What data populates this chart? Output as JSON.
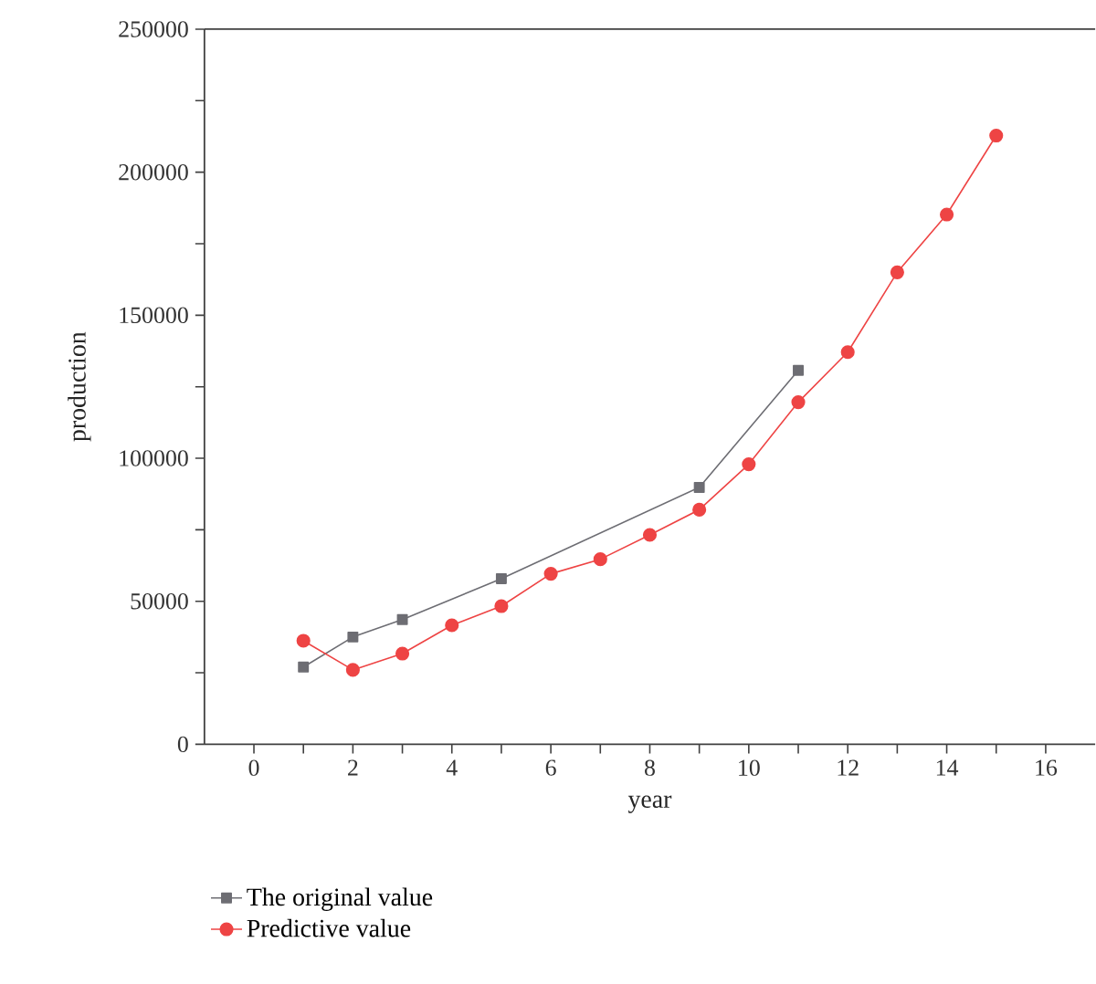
{
  "chart_data": {
    "type": "line",
    "xlabel": "year",
    "ylabel": "production",
    "xlim": [
      -1,
      17
    ],
    "xticks": [
      0,
      {
        "value": 1,
        "label": null
      },
      2,
      {
        "value": 3,
        "label": null
      },
      4,
      {
        "value": 5,
        "label": null
      },
      6,
      {
        "value": 7,
        "label": null
      },
      8,
      {
        "value": 9,
        "label": null
      },
      10,
      {
        "value": 11,
        "label": null
      },
      12,
      {
        "value": 13,
        "label": null
      },
      14,
      {
        "value": 15,
        "label": null
      },
      16
    ],
    "ylim": [
      0,
      250000
    ],
    "yticks": [
      0,
      {
        "value": 25000,
        "label": null
      },
      50000,
      {
        "value": 75000,
        "label": null
      },
      100000,
      {
        "value": 125000,
        "label": null
      },
      150000,
      {
        "value": 175000,
        "label": null
      },
      200000,
      {
        "value": 225000,
        "label": null
      },
      250000
    ],
    "grid": false,
    "legend": "bottom left",
    "line_style": "solid",
    "series": [
      {
        "name": "The original value",
        "color": "#6d6d73",
        "marker": "square",
        "x": [
          1,
          2,
          3,
          5,
          9,
          11
        ],
        "values": [
          27000,
          37500,
          43600,
          57900,
          89800,
          130700
        ]
      },
      {
        "name": "Predictive value",
        "color": "#ee4444",
        "marker": "circle",
        "x": [
          1,
          2,
          3,
          4,
          5,
          6,
          7,
          8,
          9,
          10,
          11,
          12,
          13,
          14,
          15
        ],
        "values": [
          36200,
          26000,
          31700,
          41600,
          48300,
          59600,
          64700,
          73200,
          82000,
          97900,
          119600,
          137100,
          165000,
          185200,
          212800
        ]
      }
    ]
  }
}
